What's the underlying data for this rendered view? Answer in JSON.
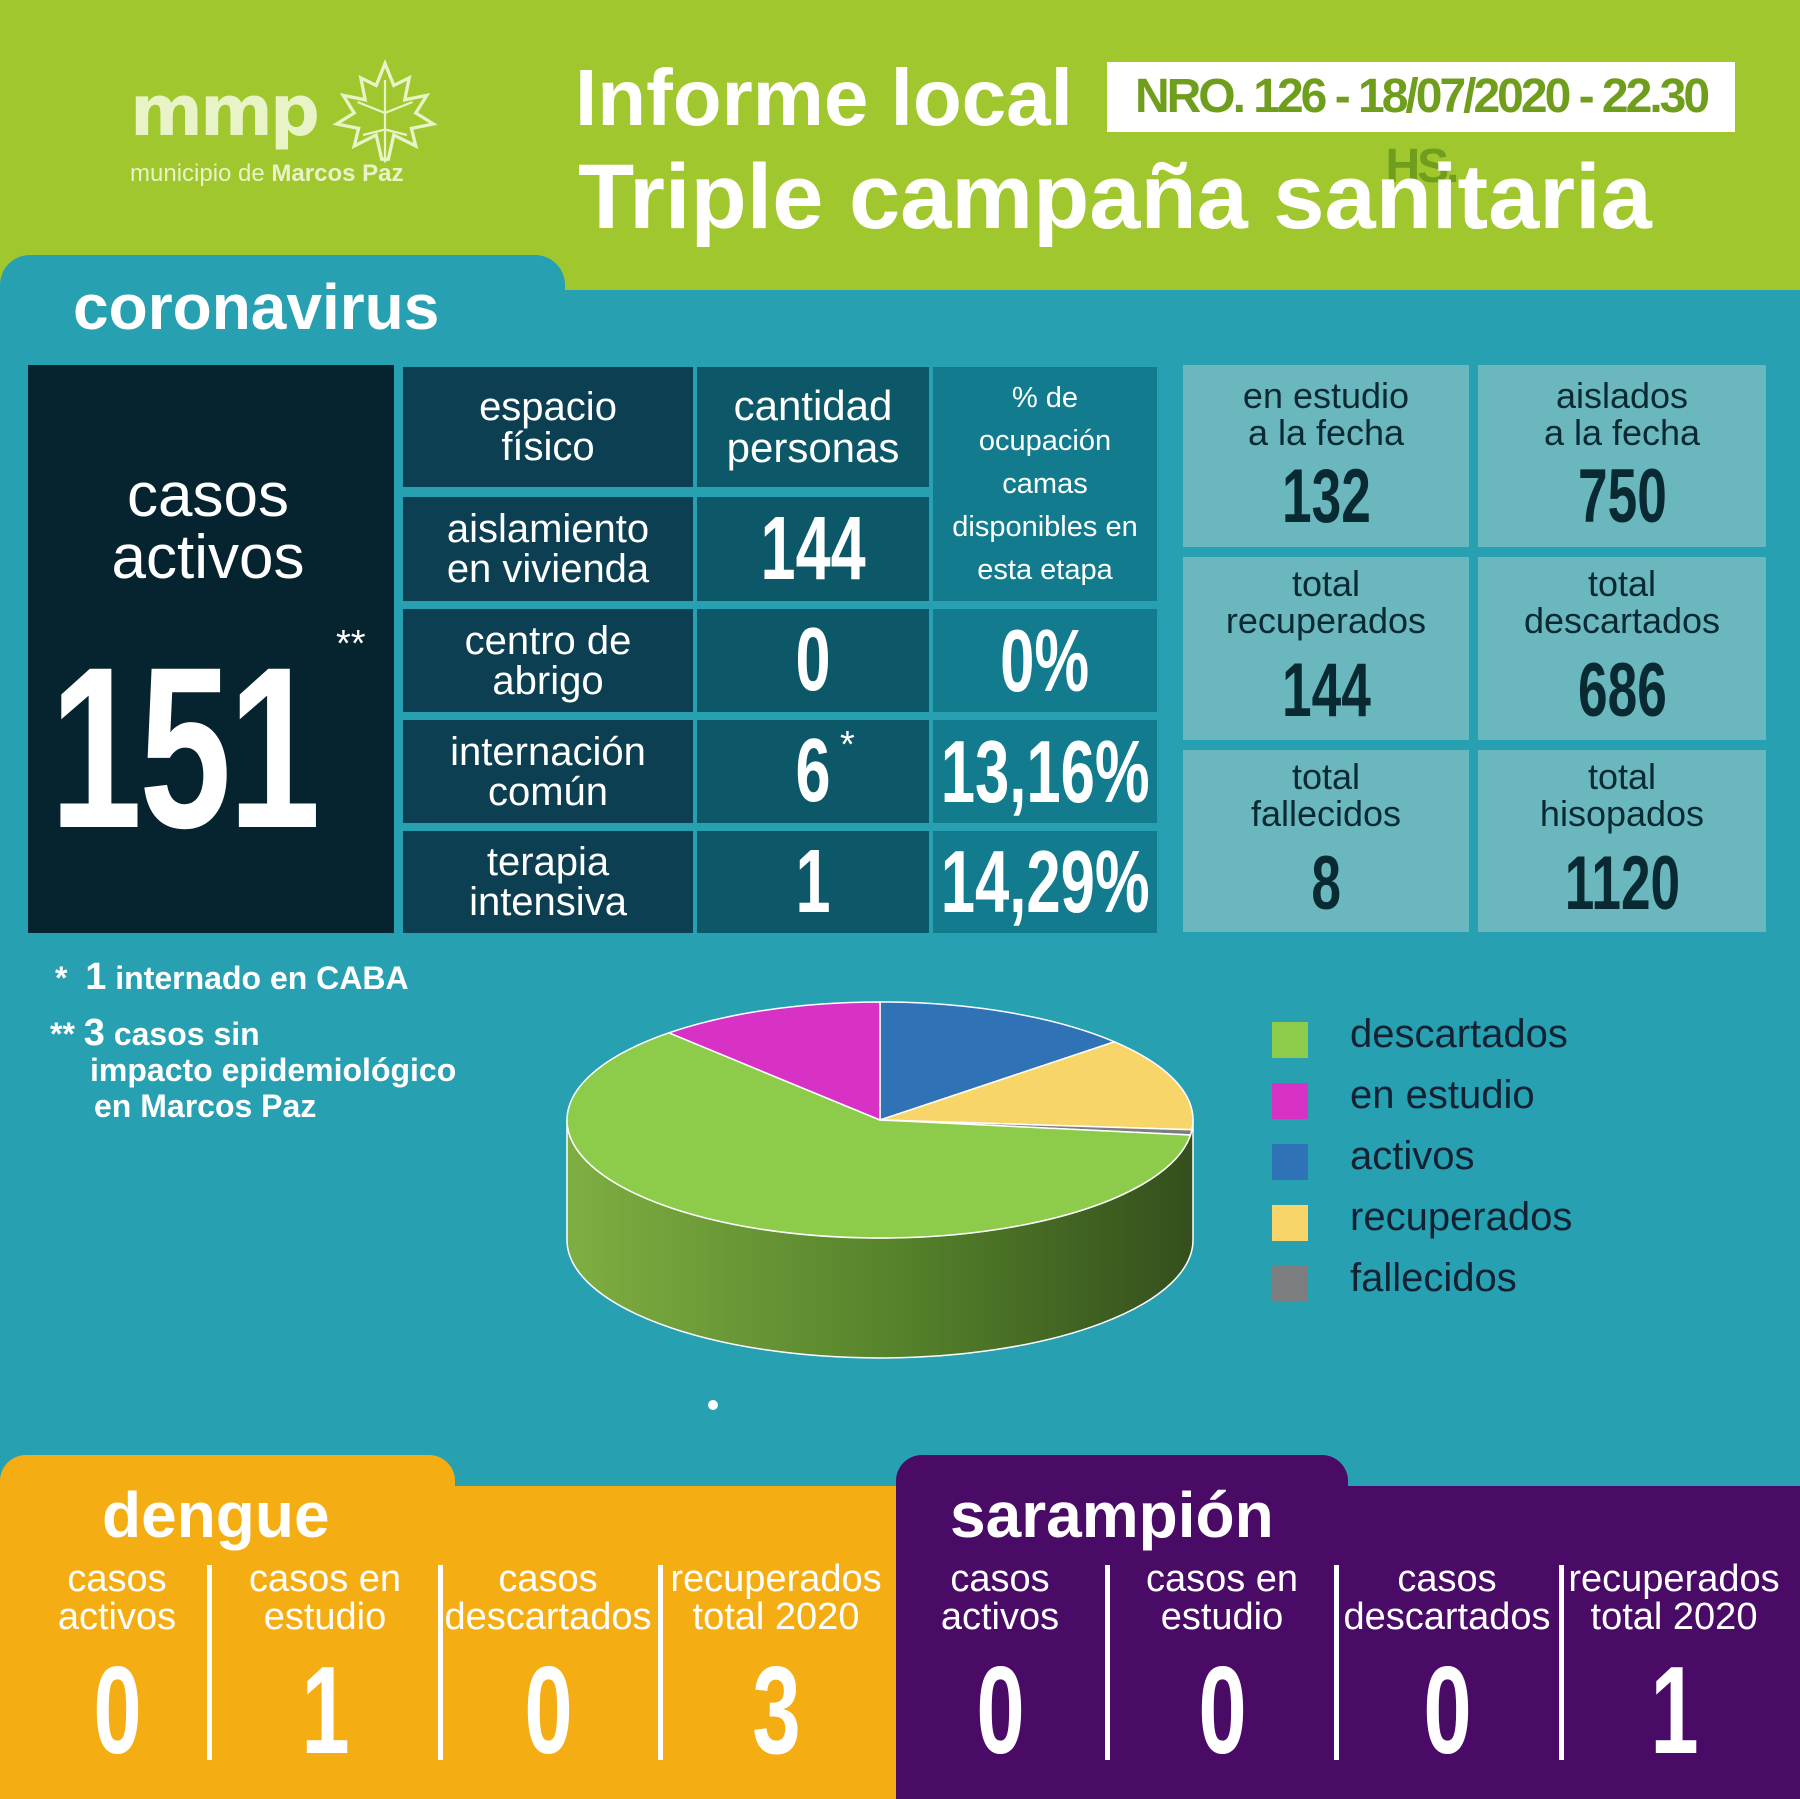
{
  "header": {
    "logo_word": "mmp",
    "logo_sub_prefix": "municipio de ",
    "logo_sub_name": "Marcos Paz",
    "title_line1": "Informe local",
    "report_tag": "NRO. 126 - 18/07/2020 - 22.30 HS.",
    "title_line2": "Triple campaña sanitaria"
  },
  "coronavirus": {
    "section_title": "coronavirus",
    "active_label_line1": "casos",
    "active_label_line2": "activos",
    "active_value": "151",
    "active_mark": "**",
    "table": {
      "headers": {
        "space": [
          "espacio",
          "físico"
        ],
        "qty": [
          "cantidad",
          "personas"
        ],
        "pct": [
          "% de",
          "ocupación",
          "camas",
          "disponibles en",
          "esta etapa"
        ]
      },
      "rows": [
        {
          "label": [
            "aislamiento",
            "en vivienda"
          ],
          "qty": "144",
          "pct": "",
          "mark": ""
        },
        {
          "label": [
            "centro de",
            "abrigo"
          ],
          "qty": "0",
          "pct": "0%",
          "mark": ""
        },
        {
          "label": [
            "internación",
            "común"
          ],
          "qty": "6",
          "pct": "13,16%",
          "mark": "*"
        },
        {
          "label": [
            "terapia",
            "intensiva"
          ],
          "qty": "1",
          "pct": "14,29%",
          "mark": ""
        }
      ]
    },
    "stats": [
      {
        "label": [
          "en estudio",
          "a la fecha"
        ],
        "value": "132"
      },
      {
        "label": [
          "aislados",
          "a la fecha"
        ],
        "value": "750"
      },
      {
        "label": [
          "total",
          "recuperados"
        ],
        "value": "144"
      },
      {
        "label": [
          "total",
          "descartados"
        ],
        "value": "686"
      },
      {
        "label": [
          "total",
          "fallecidos"
        ],
        "value": "8"
      },
      {
        "label": [
          "total",
          "hisopados"
        ],
        "value": "1120"
      }
    ],
    "notes": {
      "note1_mark": "*",
      "note1_num": "1",
      "note1_text": "internado en CABA",
      "note2_mark": "**",
      "note2_num": "3",
      "note2_line1": "casos sin",
      "note2_line2": "impacto epidemiológico",
      "note2_line3": "en Marcos Paz"
    }
  },
  "chart_data": {
    "type": "pie",
    "title": "",
    "series": [
      {
        "name": "descartados",
        "value": 686,
        "color": "#8dcb4a"
      },
      {
        "name": "en estudio",
        "value": 132,
        "color": "#d831c5"
      },
      {
        "name": "activos",
        "value": 151,
        "color": "#2f73b6"
      },
      {
        "name": "recuperados",
        "value": 144,
        "color": "#f8d568"
      },
      {
        "name": "fallecidos",
        "value": 8,
        "color": "#7b7d7e"
      }
    ],
    "legend_position": "right"
  },
  "dengue": {
    "title": "dengue",
    "columns": [
      {
        "label": [
          "casos",
          "activos"
        ],
        "value": "0"
      },
      {
        "label": [
          "casos en",
          "estudio"
        ],
        "value": "1"
      },
      {
        "label": [
          "casos",
          "descartados"
        ],
        "value": "0"
      },
      {
        "label": [
          "recuperados",
          "total 2020"
        ],
        "value": "3"
      }
    ]
  },
  "sarampion": {
    "title": "sarampión",
    "columns": [
      {
        "label": [
          "casos",
          "activos"
        ],
        "value": "0"
      },
      {
        "label": [
          "casos en",
          "estudio"
        ],
        "value": "0"
      },
      {
        "label": [
          "casos",
          "descartados"
        ],
        "value": "0"
      },
      {
        "label": [
          "recuperados",
          "total 2020"
        ],
        "value": "1"
      }
    ]
  },
  "colors": {
    "header_green": "#a0c72d",
    "teal_bg": "#27a0b2",
    "dark_navy": "#05242f",
    "dengue_orange": "#f5ad14",
    "sarampion_purple": "#490b66"
  }
}
